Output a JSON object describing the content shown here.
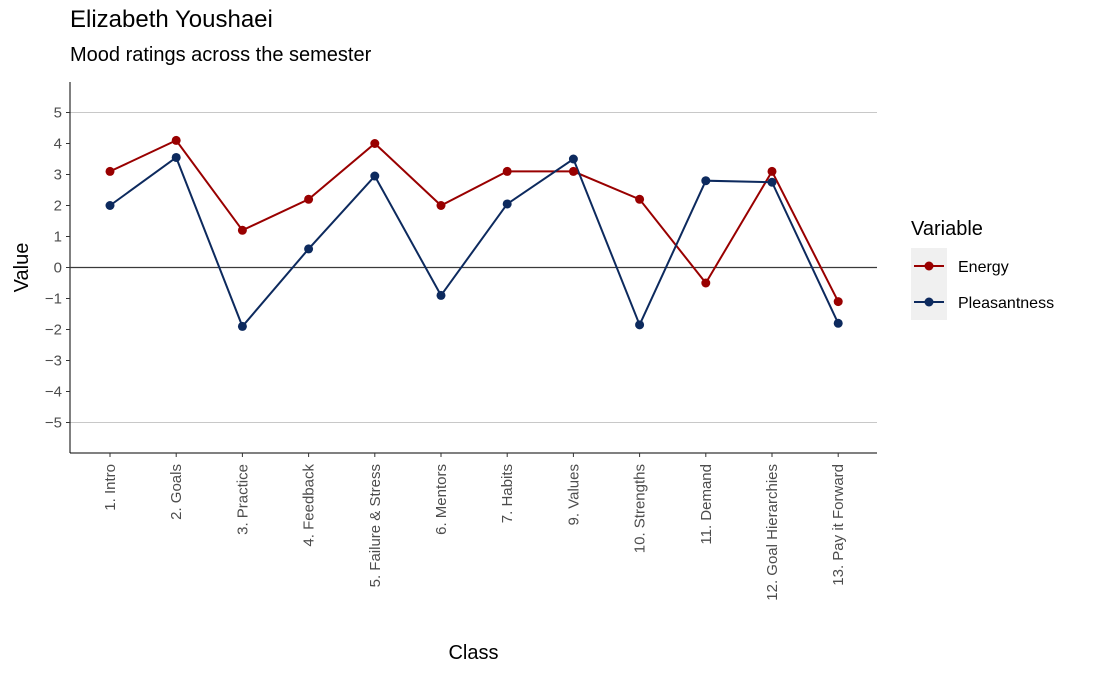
{
  "title": "Elizabeth Youshaei",
  "subtitle": "Mood ratings across the semester",
  "chart_data": {
    "type": "line",
    "xlabel": "Class",
    "ylabel": "Value",
    "ylim": [
      -6,
      6
    ],
    "yticks": [
      -5,
      -4,
      -3,
      -2,
      -1,
      0,
      1,
      2,
      3,
      4,
      5
    ],
    "ytick_labels": [
      "−5",
      "−4",
      "−3",
      "−2",
      "−1",
      "0",
      "1",
      "2",
      "3",
      "4",
      "5"
    ],
    "gridlines_y": [
      -5,
      5
    ],
    "zero_line": true,
    "categories": [
      "1. Intro",
      "2. Goals",
      "3. Practice",
      "4. Feedback",
      "5. Failure & Stress",
      "6. Mentors",
      "7. Habits",
      "9. Values",
      "10. Strengths",
      "11. Demand",
      "12. Goal Hierarchies",
      "13. Pay it Forward"
    ],
    "legend_title": "Variable",
    "legend_position": "right",
    "series": [
      {
        "name": "Energy",
        "color": "#990000",
        "values": [
          3.1,
          4.1,
          1.2,
          2.2,
          4.0,
          2.0,
          3.1,
          3.1,
          2.2,
          -0.5,
          3.1,
          -1.1
        ]
      },
      {
        "name": "Pleasantness",
        "color": "#0d2a5e",
        "values": [
          2.0,
          3.55,
          -1.9,
          0.6,
          2.95,
          -0.9,
          2.05,
          3.5,
          -1.85,
          2.8,
          2.75,
          -1.8
        ]
      }
    ]
  }
}
